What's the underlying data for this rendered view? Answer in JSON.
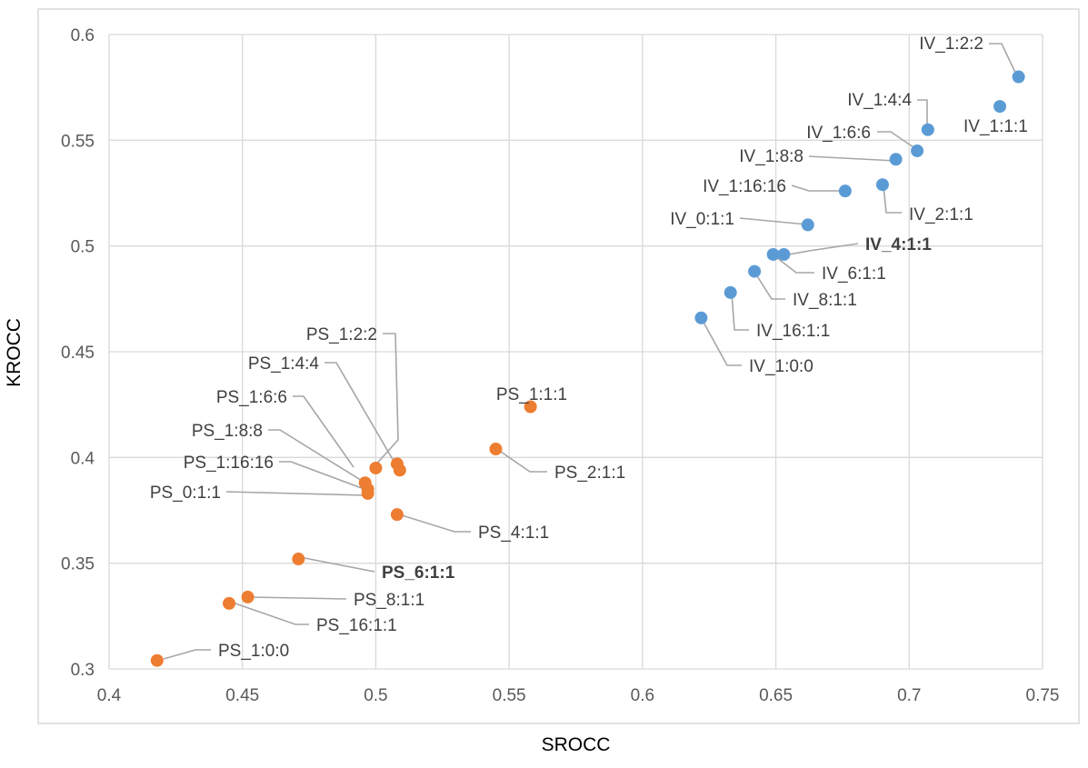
{
  "chart_data": {
    "type": "scatter",
    "title": "",
    "xlabel": "SROCC",
    "ylabel": "KROCC",
    "xlim": [
      0.4,
      0.75
    ],
    "ylim": [
      0.3,
      0.6
    ],
    "x_ticks": [
      "0.4",
      "0.45",
      "0.5",
      "0.55",
      "0.6",
      "0.65",
      "0.7",
      "0.75"
    ],
    "y_ticks": [
      "0.3",
      "0.35",
      "0.4",
      "0.45",
      "0.5",
      "0.55",
      "0.6"
    ],
    "grid": true,
    "legend": "none",
    "colors": {
      "IV": "#5b9bd5",
      "PS": "#ed7d31",
      "grid": "#d9d9d9",
      "leader": "#a6a6a6"
    },
    "series": [
      {
        "group": "IV",
        "points": [
          {
            "label": "IV_1:2:2",
            "x": 0.741,
            "y": 0.58
          },
          {
            "label": "IV_1:1:1",
            "x": 0.734,
            "y": 0.566
          },
          {
            "label": "IV_1:4:4",
            "x": 0.707,
            "y": 0.555
          },
          {
            "label": "IV_1:6:6",
            "x": 0.703,
            "y": 0.545
          },
          {
            "label": "IV_1:8:8",
            "x": 0.695,
            "y": 0.541
          },
          {
            "label": "IV_2:1:1",
            "x": 0.69,
            "y": 0.529
          },
          {
            "label": "IV_1:16:16",
            "x": 0.676,
            "y": 0.526
          },
          {
            "label": "IV_0:1:1",
            "x": 0.662,
            "y": 0.51
          },
          {
            "label": "IV_4:1:1",
            "x": 0.653,
            "y": 0.496,
            "bold": true
          },
          {
            "label": "IV_6:1:1",
            "x": 0.649,
            "y": 0.496
          },
          {
            "label": "IV_8:1:1",
            "x": 0.642,
            "y": 0.488
          },
          {
            "label": "IV_16:1:1",
            "x": 0.633,
            "y": 0.478
          },
          {
            "label": "IV_1:0:0",
            "x": 0.622,
            "y": 0.466
          }
        ]
      },
      {
        "group": "PS",
        "points": [
          {
            "label": "PS_1:1:1",
            "x": 0.558,
            "y": 0.424
          },
          {
            "label": "PS_2:1:1",
            "x": 0.545,
            "y": 0.404
          },
          {
            "label": "PS_1:2:2",
            "x": 0.508,
            "y": 0.397
          },
          {
            "label": "PS_1:4:4",
            "x": 0.509,
            "y": 0.394
          },
          {
            "label": "PS_1:6:6",
            "x": 0.5,
            "y": 0.395
          },
          {
            "label": "PS_1:8:8",
            "x": 0.496,
            "y": 0.388
          },
          {
            "label": "PS_1:16:16",
            "x": 0.497,
            "y": 0.385
          },
          {
            "label": "PS_0:1:1",
            "x": 0.497,
            "y": 0.383
          },
          {
            "label": "PS_4:1:1",
            "x": 0.508,
            "y": 0.373
          },
          {
            "label": "PS_6:1:1",
            "x": 0.471,
            "y": 0.352,
            "bold": true
          },
          {
            "label": "PS_8:1:1",
            "x": 0.452,
            "y": 0.334
          },
          {
            "label": "PS_16:1:1",
            "x": 0.445,
            "y": 0.331
          },
          {
            "label": "PS_1:0:0",
            "x": 0.418,
            "y": 0.304
          }
        ]
      }
    ]
  }
}
